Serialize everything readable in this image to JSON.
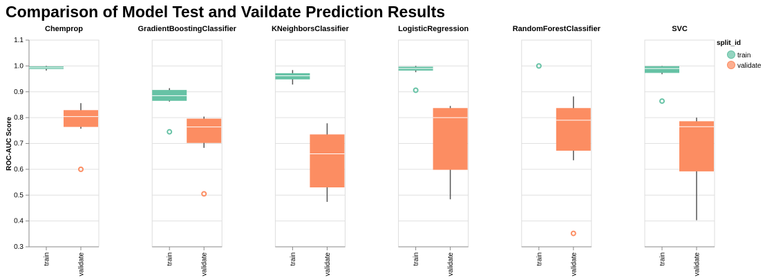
{
  "chart_data": {
    "type": "boxplot",
    "title": "Comparison of Model Test and Vaildate Prediction Results",
    "ylabel": "ROC-AUC Score",
    "ylim": [
      0.3,
      1.1
    ],
    "yticks": [
      0.3,
      0.4,
      0.5,
      0.6,
      0.7,
      0.8,
      0.9,
      1.0,
      1.1
    ],
    "ytick_labels": [
      "0.3",
      "0.4",
      "0.5",
      "0.6",
      "0.7",
      "0.8",
      "0.9",
      "1.0",
      "1.1"
    ],
    "categories": [
      "train",
      "validate"
    ],
    "grid": true,
    "legend": {
      "title": "split_id",
      "position": "right",
      "items": [
        {
          "label": "train",
          "color": "#66c2a5"
        },
        {
          "label": "validate",
          "color": "#fc8d62"
        }
      ]
    },
    "colors": {
      "train": "#66c2a5",
      "validate": "#fc8d62"
    },
    "facets": [
      {
        "model": "Chemprop",
        "boxes": {
          "train": {
            "q1": 0.988,
            "median": 0.993,
            "q3": 0.998,
            "whisker_low": 0.982,
            "whisker_high": 1.0,
            "outliers": []
          },
          "validate": {
            "q1": 0.764,
            "median": 0.804,
            "q3": 0.829,
            "whisker_low": 0.757,
            "whisker_high": 0.856,
            "outliers": [
              0.6
            ]
          }
        }
      },
      {
        "model": "GradientBoostingClassifier",
        "boxes": {
          "train": {
            "q1": 0.865,
            "median": 0.885,
            "q3": 0.907,
            "whisker_low": 0.862,
            "whisker_high": 0.914,
            "outliers": [
              0.745
            ]
          },
          "validate": {
            "q1": 0.702,
            "median": 0.764,
            "q3": 0.796,
            "whisker_low": 0.683,
            "whisker_high": 0.804,
            "outliers": [
              0.505
            ]
          }
        }
      },
      {
        "model": "KNeighborsClassifier",
        "boxes": {
          "train": {
            "q1": 0.948,
            "median": 0.962,
            "q3": 0.972,
            "whisker_low": 0.928,
            "whisker_high": 0.984,
            "outliers": []
          },
          "validate": {
            "q1": 0.53,
            "median": 0.66,
            "q3": 0.735,
            "whisker_low": 0.474,
            "whisker_high": 0.778,
            "outliers": []
          }
        }
      },
      {
        "model": "LogisticRegression",
        "boxes": {
          "train": {
            "q1": 0.982,
            "median": 0.99,
            "q3": 0.997,
            "whisker_low": 0.976,
            "whisker_high": 1.0,
            "outliers": [
              0.906
            ]
          },
          "validate": {
            "q1": 0.598,
            "median": 0.8,
            "q3": 0.837,
            "whisker_low": 0.484,
            "whisker_high": 0.845,
            "outliers": []
          }
        }
      },
      {
        "model": "RandomForestClassifier",
        "boxes": {
          "train": {
            "q1": 1.0,
            "median": 1.0,
            "q3": 1.0,
            "whisker_low": 1.0,
            "whisker_high": 1.0,
            "outliers": [
              1.0
            ],
            "box_hidden": true
          },
          "validate": {
            "q1": 0.672,
            "median": 0.79,
            "q3": 0.837,
            "whisker_low": 0.635,
            "whisker_high": 0.882,
            "outliers": [
              0.352
            ]
          }
        }
      },
      {
        "model": "SVC",
        "boxes": {
          "train": {
            "q1": 0.973,
            "median": 0.99,
            "q3": 0.999,
            "whisker_low": 0.968,
            "whisker_high": 1.0,
            "outliers": [
              0.864
            ]
          },
          "validate": {
            "q1": 0.592,
            "median": 0.765,
            "q3": 0.786,
            "whisker_low": 0.403,
            "whisker_high": 0.8,
            "outliers": []
          }
        }
      }
    ]
  }
}
